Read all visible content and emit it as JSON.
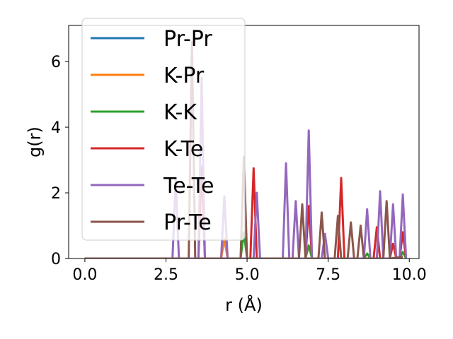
{
  "chart_data": {
    "type": "line",
    "title": "",
    "xlabel": "r (Å)",
    "ylabel": "g(r)",
    "xlim": [
      -0.5,
      10.3
    ],
    "ylim": [
      0,
      7.1
    ],
    "xticks": [
      0.0,
      2.5,
      5.0,
      7.5,
      10.0
    ],
    "xtick_labels": [
      "0.0",
      "2.5",
      "5.0",
      "7.5",
      "10.0"
    ],
    "yticks": [
      0,
      2,
      4,
      6
    ],
    "ytick_labels": [
      "0",
      "2",
      "4",
      "6"
    ],
    "grid": false,
    "legend": "top-left",
    "series": [
      {
        "name": "Pr-Pr",
        "color": "#1f77b4",
        "points": [
          [
            0,
            0
          ],
          [
            9.8,
            0
          ]
        ]
      },
      {
        "name": "K-Pr",
        "color": "#ff7f0e",
        "points": [
          [
            0,
            0
          ],
          [
            4.2,
            0
          ],
          [
            4.3,
            0.6
          ],
          [
            4.4,
            0
          ],
          [
            9.8,
            0
          ]
        ]
      },
      {
        "name": "K-K",
        "color": "#2ca02c",
        "points": [
          [
            0,
            0
          ],
          [
            4.8,
            0
          ],
          [
            4.9,
            0.8
          ],
          [
            5.0,
            0
          ],
          [
            6.8,
            0
          ],
          [
            6.9,
            0.4
          ],
          [
            7.0,
            0
          ],
          [
            8.6,
            0
          ],
          [
            8.7,
            0.15
          ],
          [
            8.8,
            0
          ],
          [
            9.7,
            0
          ],
          [
            9.8,
            0.2
          ],
          [
            9.9,
            0
          ]
        ]
      },
      {
        "name": "K-Te",
        "color": "#d62728",
        "points": [
          [
            0,
            0
          ],
          [
            3.5,
            0
          ],
          [
            3.6,
            2.8
          ],
          [
            3.7,
            0
          ],
          [
            5.1,
            0
          ],
          [
            5.2,
            2.75
          ],
          [
            5.3,
            0
          ],
          [
            6.8,
            0
          ],
          [
            6.9,
            1.6
          ],
          [
            7.0,
            0
          ],
          [
            7.8,
            0
          ],
          [
            7.9,
            2.45
          ],
          [
            8.0,
            0
          ],
          [
            8.9,
            0
          ],
          [
            9.0,
            0.95
          ],
          [
            9.1,
            0
          ],
          [
            9.4,
            0
          ],
          [
            9.5,
            0.45
          ],
          [
            9.6,
            0
          ],
          [
            9.7,
            0
          ],
          [
            9.8,
            0.8
          ],
          [
            9.9,
            0
          ]
        ]
      },
      {
        "name": "Te-Te",
        "color": "#9467bd",
        "points": [
          [
            0,
            0
          ],
          [
            2.7,
            0
          ],
          [
            2.8,
            2.4
          ],
          [
            2.9,
            0
          ],
          [
            3.5,
            0
          ],
          [
            3.6,
            5.5
          ],
          [
            3.7,
            0
          ],
          [
            4.2,
            0
          ],
          [
            4.3,
            1.9
          ],
          [
            4.4,
            0
          ],
          [
            5.2,
            0
          ],
          [
            5.3,
            2.0
          ],
          [
            5.4,
            0
          ],
          [
            6.1,
            0
          ],
          [
            6.2,
            2.9
          ],
          [
            6.3,
            0
          ],
          [
            6.4,
            0
          ],
          [
            6.5,
            1.75
          ],
          [
            6.6,
            0
          ],
          [
            6.8,
            0
          ],
          [
            6.9,
            3.9
          ],
          [
            7.0,
            0
          ],
          [
            7.3,
            0
          ],
          [
            7.4,
            0.75
          ],
          [
            7.5,
            0
          ],
          [
            8.6,
            0
          ],
          [
            8.7,
            1.5
          ],
          [
            8.8,
            0
          ],
          [
            9.0,
            0
          ],
          [
            9.1,
            2.05
          ],
          [
            9.2,
            0
          ],
          [
            9.4,
            0
          ],
          [
            9.5,
            1.65
          ],
          [
            9.6,
            0
          ],
          [
            9.7,
            0
          ],
          [
            9.8,
            1.95
          ],
          [
            9.9,
            0
          ]
        ]
      },
      {
        "name": "Pr-Te",
        "color": "#8c564b",
        "points": [
          [
            0,
            0
          ],
          [
            3.2,
            0
          ],
          [
            3.3,
            6.6
          ],
          [
            3.4,
            0
          ],
          [
            4.8,
            0
          ],
          [
            4.9,
            3.1
          ],
          [
            5.0,
            0
          ],
          [
            6.6,
            0
          ],
          [
            6.7,
            1.65
          ],
          [
            6.8,
            0
          ],
          [
            7.2,
            0
          ],
          [
            7.3,
            1.4
          ],
          [
            7.4,
            0
          ],
          [
            7.7,
            0
          ],
          [
            7.8,
            1.3
          ],
          [
            7.9,
            0
          ],
          [
            8.1,
            0
          ],
          [
            8.2,
            1.1
          ],
          [
            8.3,
            0
          ],
          [
            8.4,
            0
          ],
          [
            8.5,
            1.0
          ],
          [
            8.6,
            0
          ],
          [
            9.2,
            0
          ],
          [
            9.3,
            1.75
          ],
          [
            9.4,
            0
          ],
          [
            9.8,
            0.05
          ]
        ]
      }
    ]
  }
}
